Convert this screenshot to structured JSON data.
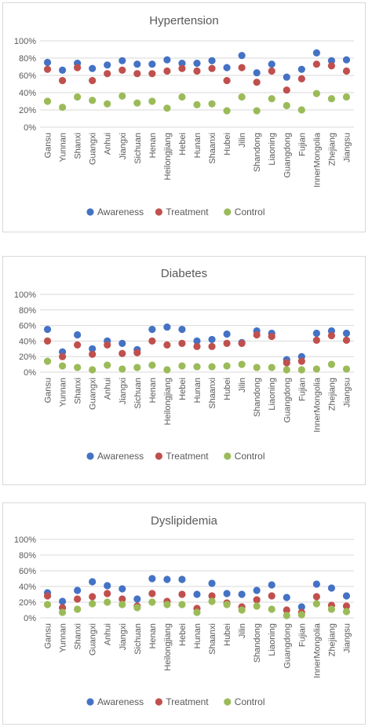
{
  "colors": {
    "Awareness": "#4472c4",
    "Treatment": "#c0504d",
    "Control": "#9bbb59"
  },
  "chart_data": [
    {
      "type": "scatter",
      "title": "Hypertension",
      "categories": [
        "Gansu",
        "Yunnan",
        "Shanxi",
        "Guangxi",
        "Anhui",
        "Jiangxi",
        "Sichuan",
        "Henan",
        "Heilongjiang",
        "Hebei",
        "Hunan",
        "Shaanxi",
        "Hubei",
        "Jilin",
        "Shandong",
        "Liaoning",
        "Guangdong",
        "Fujian",
        "InnerMongolia",
        "Zhejiang",
        "Jiangsu"
      ],
      "ylim": [
        0,
        100
      ],
      "yticks": [
        "0%",
        "20%",
        "40%",
        "60%",
        "80%",
        "100%"
      ],
      "grid": true,
      "legend_position": "bottom",
      "series": [
        {
          "name": "Awareness",
          "values": [
            75,
            66,
            74,
            68,
            72,
            77,
            73,
            73,
            78,
            74,
            74,
            77,
            69,
            83,
            63,
            73,
            58,
            67,
            86,
            77,
            78
          ]
        },
        {
          "name": "Treatment",
          "values": [
            67,
            54,
            69,
            54,
            62,
            66,
            62,
            62,
            65,
            68,
            65,
            68,
            54,
            69,
            52,
            65,
            43,
            56,
            73,
            71,
            65
          ]
        },
        {
          "name": "Control",
          "values": [
            30,
            23,
            35,
            31,
            27,
            36,
            28,
            30,
            22,
            35,
            26,
            27,
            19,
            35,
            19,
            33,
            25,
            20,
            39,
            33,
            35
          ]
        }
      ]
    },
    {
      "type": "scatter",
      "title": "Diabetes",
      "categories": [
        "Gansu",
        "Yunnan",
        "Shanxi",
        "Guangxi",
        "Anhui",
        "Jiangxi",
        "Sichuan",
        "Henan",
        "Heilongjiang",
        "Hebei",
        "Hunan",
        "Shaanxi",
        "Hubei",
        "Jilin",
        "Shandong",
        "Liaoning",
        "Guangdong",
        "Fujian",
        "InnerMongolia",
        "Zhejiang",
        "Jiangsu"
      ],
      "ylim": [
        0,
        100
      ],
      "yticks": [
        "0%",
        "20%",
        "40%",
        "60%",
        "80%",
        "100%"
      ],
      "grid": true,
      "legend_position": "bottom",
      "series": [
        {
          "name": "Awareness",
          "values": [
            55,
            26,
            48,
            30,
            40,
            37,
            29,
            55,
            58,
            55,
            40,
            42,
            49,
            38,
            53,
            50,
            16,
            20,
            50,
            53,
            50
          ]
        },
        {
          "name": "Treatment",
          "values": [
            40,
            20,
            35,
            23,
            35,
            24,
            25,
            40,
            35,
            37,
            33,
            33,
            37,
            37,
            48,
            46,
            12,
            14,
            41,
            47,
            41
          ]
        },
        {
          "name": "Control",
          "values": [
            14,
            8,
            6,
            3,
            9,
            4,
            6,
            9,
            3,
            8,
            7,
            7,
            8,
            10,
            6,
            6,
            3,
            3,
            4,
            10,
            4
          ]
        }
      ]
    },
    {
      "type": "scatter",
      "title": "Dyslipidemia",
      "categories": [
        "Gansu",
        "Yunnan",
        "Shanxi",
        "Guangxi",
        "Anhui",
        "Jiangxi",
        "Sichuan",
        "Henan",
        "Heilongjiang",
        "Hebei",
        "Hunan",
        "Shaanxi",
        "Hubei",
        "Jilin",
        "Shandong",
        "Liaoning",
        "Guangdong",
        "Fujian",
        "InnerMongolia",
        "Zhejiang",
        "Jiangsu"
      ],
      "ylim": [
        0,
        100
      ],
      "yticks": [
        "0%",
        "20%",
        "40%",
        "60%",
        "80%",
        "100%"
      ],
      "grid": true,
      "legend_position": "bottom",
      "series": [
        {
          "name": "Awareness",
          "values": [
            32,
            21,
            35,
            46,
            41,
            37,
            24,
            50,
            49,
            49,
            30,
            44,
            31,
            30,
            35,
            42,
            26,
            14,
            43,
            38,
            28
          ]
        },
        {
          "name": "Treatment",
          "values": [
            28,
            13,
            24,
            27,
            31,
            24,
            15,
            31,
            21,
            30,
            12,
            28,
            19,
            14,
            23,
            28,
            10,
            7,
            27,
            16,
            15
          ]
        },
        {
          "name": "Control",
          "values": [
            17,
            7,
            11,
            18,
            20,
            17,
            13,
            20,
            17,
            17,
            7,
            21,
            17,
            10,
            15,
            11,
            3,
            4,
            18,
            11,
            8
          ]
        }
      ]
    }
  ]
}
